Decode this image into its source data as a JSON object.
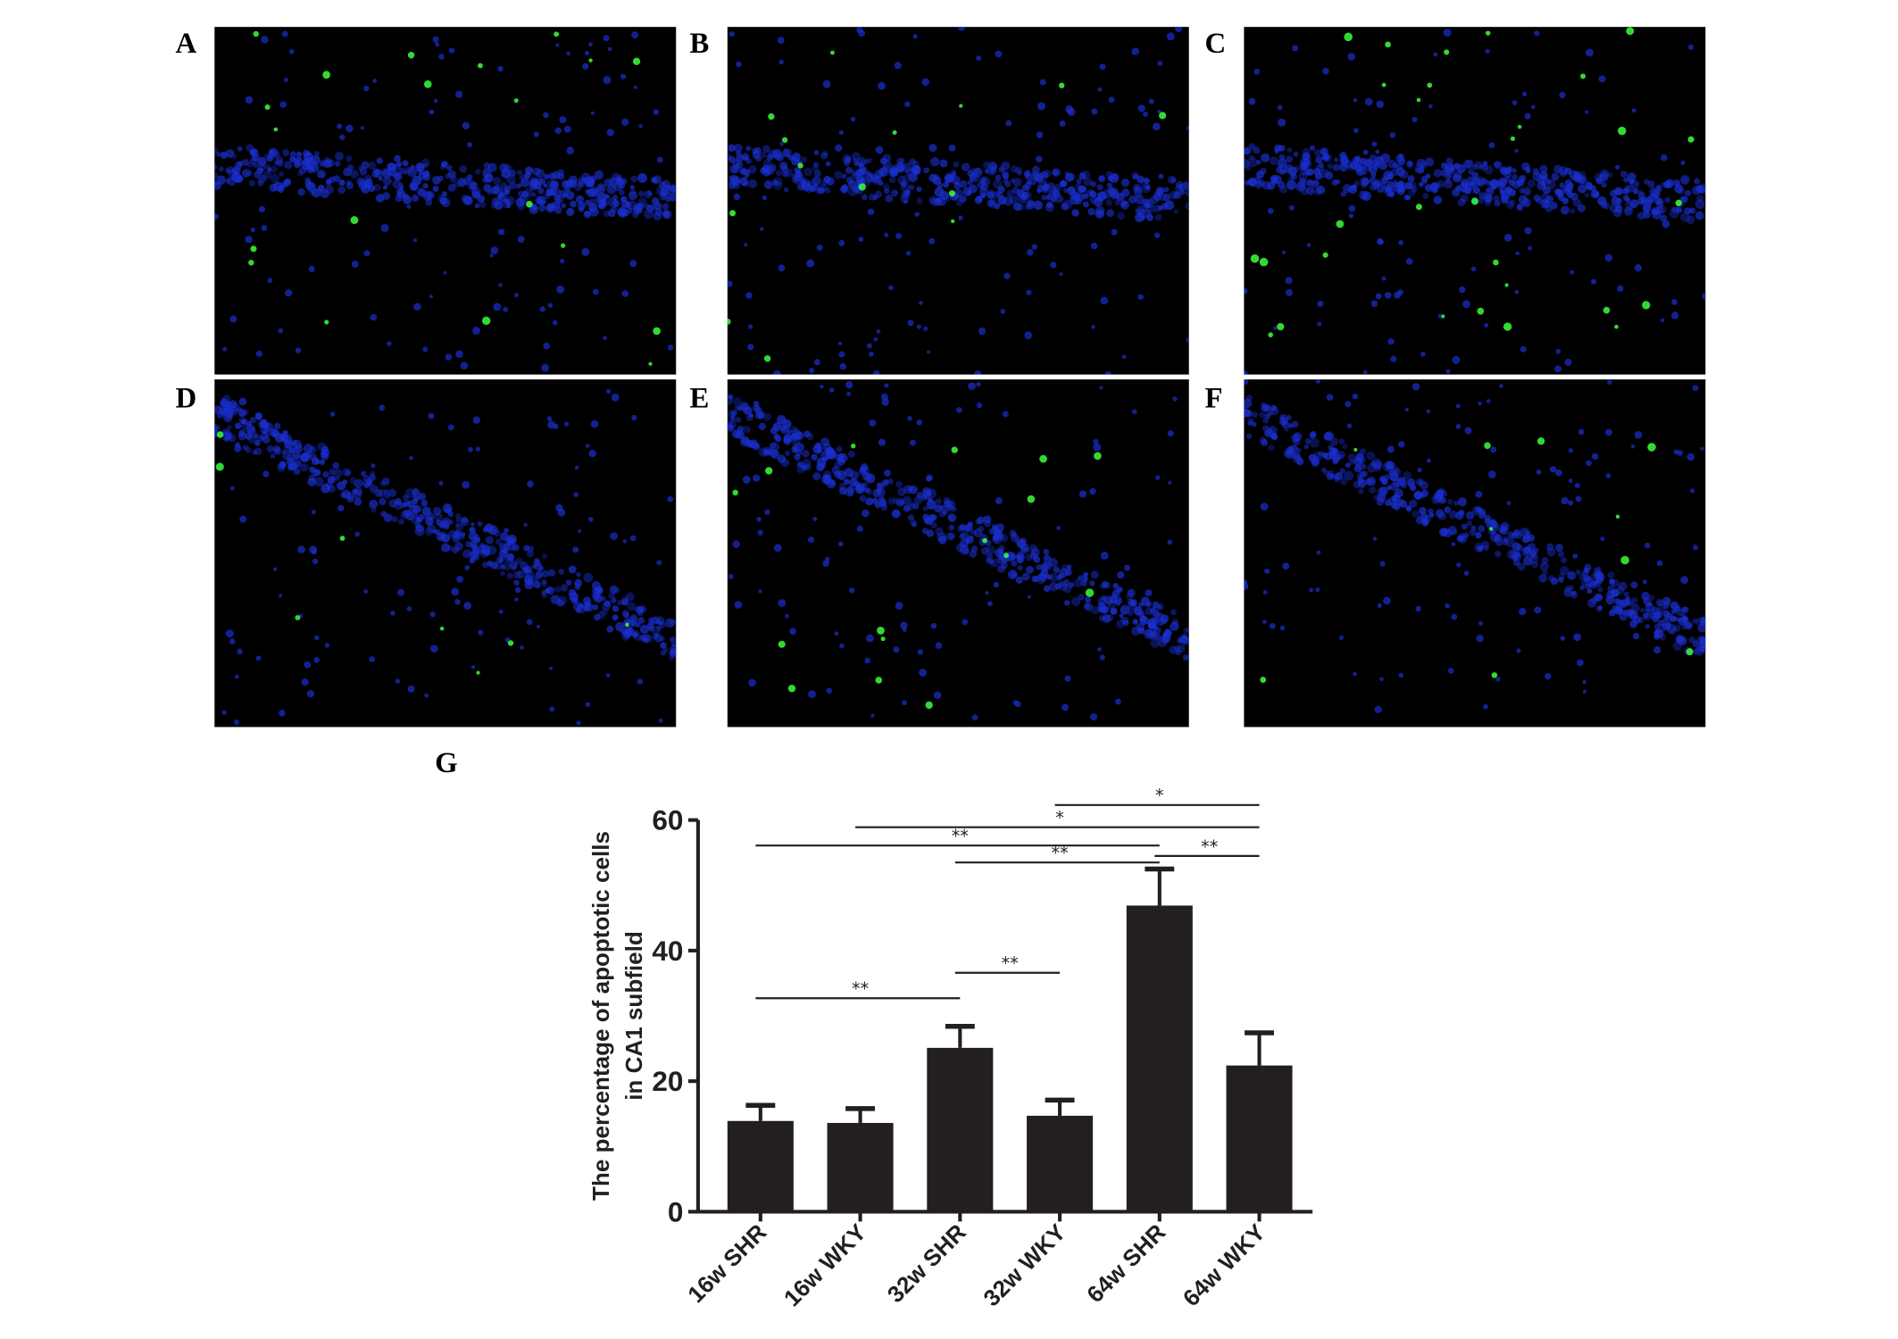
{
  "panels": [
    {
      "label": "A"
    },
    {
      "label": "B"
    },
    {
      "label": "C"
    },
    {
      "label": "D"
    },
    {
      "label": "E"
    },
    {
      "label": "F"
    }
  ],
  "chart_panel_label": "G",
  "colors": {
    "nucleus_stain": "#1a2fd0",
    "apoptotic_stain": "#3cff3c",
    "bar": "#231f20"
  },
  "chart_data": {
    "type": "bar",
    "categories": [
      "16w SHR",
      "16w WKY",
      "32w SHR",
      "32w WKY",
      "64w SHR",
      "64w WKY"
    ],
    "values": [
      13.9,
      13.6,
      25.1,
      14.7,
      46.9,
      22.4
    ],
    "error_upper": [
      16.3,
      15.8,
      28.4,
      17.1,
      52.5,
      27.4
    ],
    "ylabel_lines": [
      "The percentage of apoptotic cells",
      "in CA1 subfield"
    ],
    "xlabel": "",
    "ylim": [
      0,
      60
    ],
    "yticks": [
      0,
      20,
      40,
      60
    ],
    "grid": false,
    "significance": [
      {
        "from": "32w WKY",
        "to": "64w WKY",
        "level": 62.3,
        "label": "*"
      },
      {
        "from": "16w WKY",
        "to": "64w WKY",
        "level": 58.9,
        "label": "*"
      },
      {
        "from": "16w SHR",
        "to": "64w SHR",
        "level": 56.1,
        "label": "**"
      },
      {
        "from": "64w SHR",
        "to": "64w WKY",
        "level": 54.5,
        "label": "**"
      },
      {
        "from": "32w SHR",
        "to": "64w SHR",
        "level": 53.5,
        "label": "**"
      },
      {
        "from": "32w SHR",
        "to": "32w WKY",
        "level": 36.6,
        "label": "**"
      },
      {
        "from": "16w SHR",
        "to": "32w SHR",
        "level": 32.7,
        "label": "**"
      }
    ]
  }
}
